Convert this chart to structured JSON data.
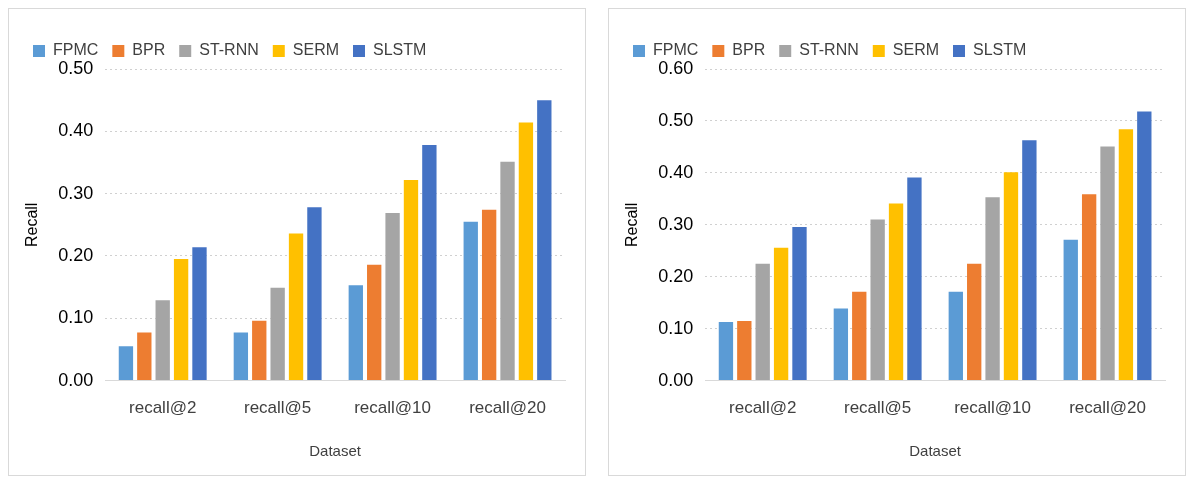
{
  "chart_data": [
    {
      "type": "bar",
      "xlabel": "Dataset",
      "ylabel": "Recall",
      "categories": [
        "recall@2",
        "recall@5",
        "recall@10",
        "recall@20"
      ],
      "ylim": [
        0,
        0.5
      ],
      "yticks": [
        {
          "value": 0,
          "label": "0.00"
        },
        {
          "value": 0.1,
          "label": "0.10"
        },
        {
          "value": 0.2,
          "label": "0.20"
        },
        {
          "value": 0.3,
          "label": "0.30"
        },
        {
          "value": 0.4,
          "label": "0.40"
        },
        {
          "value": 0.5,
          "label": "0.50"
        }
      ],
      "grid": "y",
      "legend": "top left",
      "series": [
        {
          "name": "FPMC",
          "color": "#5b9bd5",
          "values": [
            0.055,
            0.077,
            0.153,
            0.255
          ]
        },
        {
          "name": "BPR",
          "color": "#ed7d31",
          "values": [
            0.077,
            0.096,
            0.186,
            0.274
          ]
        },
        {
          "name": "ST-RNN",
          "color": "#a5a5a5",
          "values": [
            0.129,
            0.149,
            0.269,
            0.351
          ]
        },
        {
          "name": "SERM",
          "color": "#ffc000",
          "values": [
            0.195,
            0.236,
            0.322,
            0.414
          ]
        },
        {
          "name": "SLSTM",
          "color": "#4472c4",
          "values": [
            0.214,
            0.278,
            0.378,
            0.45
          ]
        }
      ]
    },
    {
      "type": "bar",
      "xlabel": "Dataset",
      "ylabel": "Recall",
      "categories": [
        "recall@2",
        "recall@5",
        "recall@10",
        "recall@20"
      ],
      "ylim": [
        0,
        0.6
      ],
      "yticks": [
        {
          "value": 0,
          "label": "0.00"
        },
        {
          "value": 0.1,
          "label": "0.10"
        },
        {
          "value": 0.2,
          "label": "0.20"
        },
        {
          "value": 0.3,
          "label": "0.30"
        },
        {
          "value": 0.4,
          "label": "0.40"
        },
        {
          "value": 0.5,
          "label": "0.50"
        },
        {
          "value": 0.6,
          "label": "0.60"
        }
      ],
      "grid": "y",
      "legend": "top left",
      "series": [
        {
          "name": "FPMC",
          "color": "#5b9bd5",
          "values": [
            0.113,
            0.139,
            0.171,
            0.271
          ]
        },
        {
          "name": "BPR",
          "color": "#ed7d31",
          "values": [
            0.115,
            0.171,
            0.225,
            0.359
          ]
        },
        {
          "name": "ST-RNN",
          "color": "#a5a5a5",
          "values": [
            0.225,
            0.31,
            0.353,
            0.451
          ]
        },
        {
          "name": "SERM",
          "color": "#ffc000",
          "values": [
            0.256,
            0.341,
            0.401,
            0.484
          ]
        },
        {
          "name": "SLSTM",
          "color": "#4472c4",
          "values": [
            0.296,
            0.391,
            0.463,
            0.518
          ]
        }
      ]
    }
  ]
}
